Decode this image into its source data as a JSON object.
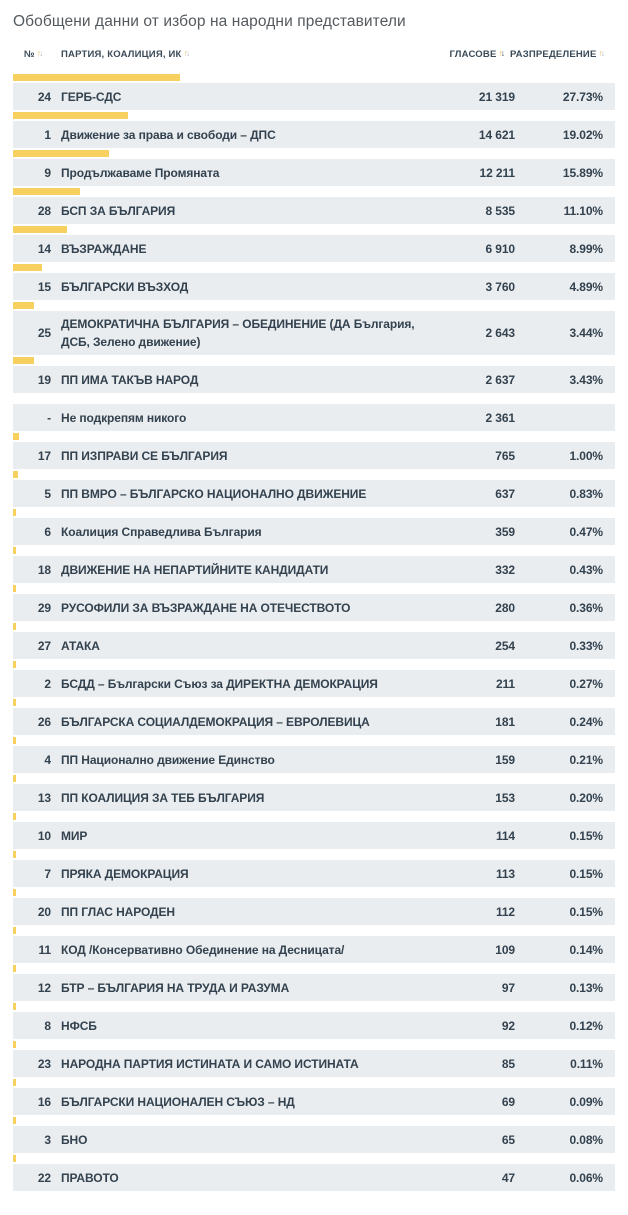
{
  "title": "Обобщени данни от избор на народни представители",
  "table": {
    "headers": {
      "number": "№",
      "party": "ПАРТИЯ, КОАЛИЦИЯ, ИК",
      "votes": "ГЛАСОВЕ",
      "distribution": "РАЗПРЕДЕЛЕНИЕ"
    },
    "sort": {
      "active_column": "votes",
      "direction": "desc"
    },
    "rows": [
      {
        "num": "24",
        "name": "ГЕРБ-СДС",
        "votes": "21 319",
        "percent": "27.73%",
        "percent_value": 27.73
      },
      {
        "num": "1",
        "name": "Движение за права и свободи – ДПС",
        "votes": "14 621",
        "percent": "19.02%",
        "percent_value": 19.02
      },
      {
        "num": "9",
        "name": "Продължаваме Промяната",
        "votes": "12 211",
        "percent": "15.89%",
        "percent_value": 15.89
      },
      {
        "num": "28",
        "name": "БСП ЗА БЪЛГАРИЯ",
        "votes": "8 535",
        "percent": "11.10%",
        "percent_value": 11.1
      },
      {
        "num": "14",
        "name": "ВЪЗРАЖДАНЕ",
        "votes": "6 910",
        "percent": "8.99%",
        "percent_value": 8.99
      },
      {
        "num": "15",
        "name": "БЪЛГАРСКИ ВЪЗХОД",
        "votes": "3 760",
        "percent": "4.89%",
        "percent_value": 4.89
      },
      {
        "num": "25",
        "name": "ДЕМОКРАТИЧНА БЪЛГАРИЯ – ОБЕДИНЕНИЕ (ДА България, ДСБ, Зелено движение)",
        "votes": "2 643",
        "percent": "3.44%",
        "percent_value": 3.44
      },
      {
        "num": "19",
        "name": "ПП ИМА ТАКЪВ НАРОД",
        "votes": "2 637",
        "percent": "3.43%",
        "percent_value": 3.43
      },
      {
        "num": "-",
        "name": "Не подкрепям никого",
        "votes": "2 361",
        "percent": "",
        "percent_value": null
      },
      {
        "num": "17",
        "name": "ПП ИЗПРАВИ СЕ БЪЛГАРИЯ",
        "votes": "765",
        "percent": "1.00%",
        "percent_value": 1.0
      },
      {
        "num": "5",
        "name": "ПП ВМРО – БЪЛГАРСКО НАЦИОНАЛНО ДВИЖЕНИЕ",
        "votes": "637",
        "percent": "0.83%",
        "percent_value": 0.83
      },
      {
        "num": "6",
        "name": "Коалиция Справедлива България",
        "votes": "359",
        "percent": "0.47%",
        "percent_value": 0.47
      },
      {
        "num": "18",
        "name": "ДВИЖЕНИЕ НА НЕПАРТИЙНИТЕ КАНДИДАТИ",
        "votes": "332",
        "percent": "0.43%",
        "percent_value": 0.43
      },
      {
        "num": "29",
        "name": "РУСОФИЛИ ЗА ВЪЗРАЖДАНЕ НА ОТЕЧЕСТВОТО",
        "votes": "280",
        "percent": "0.36%",
        "percent_value": 0.36
      },
      {
        "num": "27",
        "name": "АТАКА",
        "votes": "254",
        "percent": "0.33%",
        "percent_value": 0.33
      },
      {
        "num": "2",
        "name": "БСДД – Български Съюз за ДИРЕКТНА ДЕМОКРАЦИЯ",
        "votes": "211",
        "percent": "0.27%",
        "percent_value": 0.27
      },
      {
        "num": "26",
        "name": "БЪЛГАРСКА СОЦИАЛДЕМОКРАЦИЯ – ЕВРОЛЕВИЦА",
        "votes": "181",
        "percent": "0.24%",
        "percent_value": 0.24
      },
      {
        "num": "4",
        "name": "ПП Национално движение Единство",
        "votes": "159",
        "percent": "0.21%",
        "percent_value": 0.21
      },
      {
        "num": "13",
        "name": "ПП КОАЛИЦИЯ ЗА ТЕБ БЪЛГАРИЯ",
        "votes": "153",
        "percent": "0.20%",
        "percent_value": 0.2
      },
      {
        "num": "10",
        "name": "МИР",
        "votes": "114",
        "percent": "0.15%",
        "percent_value": 0.15
      },
      {
        "num": "7",
        "name": "ПРЯКА ДЕМОКРАЦИЯ",
        "votes": "113",
        "percent": "0.15%",
        "percent_value": 0.15
      },
      {
        "num": "20",
        "name": "ПП ГЛАС НАРОДЕН",
        "votes": "112",
        "percent": "0.15%",
        "percent_value": 0.15
      },
      {
        "num": "11",
        "name": "КОД /Консервативно Обединение на Десницата/",
        "votes": "109",
        "percent": "0.14%",
        "percent_value": 0.14
      },
      {
        "num": "12",
        "name": "БТР – БЪЛГАРИЯ НА ТРУДА И РАЗУМА",
        "votes": "97",
        "percent": "0.13%",
        "percent_value": 0.13
      },
      {
        "num": "8",
        "name": "НФСБ",
        "votes": "92",
        "percent": "0.12%",
        "percent_value": 0.12
      },
      {
        "num": "23",
        "name": "НАРОДНА ПАРТИЯ ИСТИНАТА И САМО ИСТИНАТА",
        "votes": "85",
        "percent": "0.11%",
        "percent_value": 0.11
      },
      {
        "num": "16",
        "name": "БЪЛГАРСКИ НАЦИОНАЛЕН СЪЮЗ – НД",
        "votes": "69",
        "percent": "0.09%",
        "percent_value": 0.09
      },
      {
        "num": "3",
        "name": "БНО",
        "votes": "65",
        "percent": "0.08%",
        "percent_value": 0.08
      },
      {
        "num": "22",
        "name": "ПРАВОТО",
        "votes": "47",
        "percent": "0.06%",
        "percent_value": 0.06
      }
    ]
  },
  "colors": {
    "bar_fill": "#f8d05f",
    "row_background": "#e9edf0",
    "text": "#33424e",
    "title_text": "#54595e",
    "sort_active_up": "#f0a92d",
    "sort_active_down": "#33424e",
    "sort_inactive_up": "#e3ba62",
    "sort_inactive_down": "#adb5bc"
  }
}
